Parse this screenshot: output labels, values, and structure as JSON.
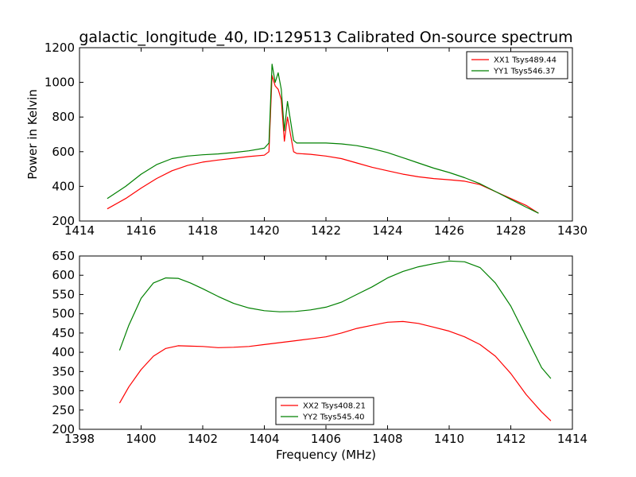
{
  "chart_data": [
    {
      "type": "line",
      "title": "galactic_longitude_40, ID:129513 Calibrated On-source spectrum",
      "xlabel": "",
      "ylabel": "Power in Kelvin",
      "xlim": [
        1414,
        1430
      ],
      "ylim": [
        200,
        1200
      ],
      "xticks": [
        "1414",
        "1416",
        "1418",
        "1420",
        "1422",
        "1424",
        "1426",
        "1428",
        "1430"
      ],
      "yticks": [
        "200",
        "400",
        "600",
        "800",
        "1000",
        "1200"
      ],
      "legend_position": "top-right",
      "grid": false,
      "series": [
        {
          "name": "XX1 Tsys489.44",
          "color": "#ff0000",
          "x": [
            1414.9,
            1415.5,
            1416.0,
            1416.5,
            1417.0,
            1417.5,
            1418.0,
            1418.5,
            1419.0,
            1419.5,
            1420.0,
            1420.15,
            1420.25,
            1420.35,
            1420.45,
            1420.55,
            1420.65,
            1420.75,
            1420.85,
            1420.95,
            1421.05,
            1421.5,
            1422.0,
            1422.5,
            1423.0,
            1423.5,
            1424.0,
            1424.5,
            1425.0,
            1425.5,
            1426.0,
            1426.5,
            1427.0,
            1427.5,
            1428.0,
            1428.5,
            1428.9
          ],
          "y": [
            270,
            330,
            390,
            445,
            490,
            520,
            540,
            552,
            562,
            572,
            580,
            600,
            1040,
            980,
            960,
            900,
            660,
            800,
            700,
            600,
            590,
            585,
            575,
            560,
            535,
            510,
            490,
            470,
            455,
            445,
            438,
            430,
            410,
            370,
            330,
            290,
            245
          ]
        },
        {
          "name": "YY1 Tsys546.37",
          "color": "#008000",
          "x": [
            1414.9,
            1415.5,
            1416.0,
            1416.5,
            1417.0,
            1417.5,
            1418.0,
            1418.5,
            1419.0,
            1419.5,
            1420.0,
            1420.15,
            1420.25,
            1420.35,
            1420.45,
            1420.55,
            1420.65,
            1420.75,
            1420.85,
            1420.95,
            1421.05,
            1421.5,
            1422.0,
            1422.5,
            1423.0,
            1423.5,
            1424.0,
            1424.5,
            1425.0,
            1425.5,
            1426.0,
            1426.5,
            1427.0,
            1427.5,
            1428.0,
            1428.5,
            1428.9
          ],
          "y": [
            330,
            400,
            470,
            525,
            560,
            575,
            582,
            587,
            595,
            605,
            620,
            650,
            1105,
            1000,
            1055,
            960,
            720,
            890,
            780,
            665,
            650,
            650,
            650,
            645,
            635,
            618,
            595,
            565,
            535,
            505,
            480,
            450,
            415,
            370,
            325,
            280,
            245
          ]
        }
      ]
    },
    {
      "type": "line",
      "title": "",
      "xlabel": "Frequency (MHz)",
      "ylabel": "",
      "xlim": [
        1398,
        1414
      ],
      "ylim": [
        200,
        650
      ],
      "xticks": [
        "1398",
        "1400",
        "1402",
        "1404",
        "1406",
        "1408",
        "1410",
        "1412",
        "1414"
      ],
      "yticks": [
        "200",
        "250",
        "300",
        "350",
        "400",
        "450",
        "500",
        "550",
        "600",
        "650"
      ],
      "legend_position": "bottom-center",
      "grid": false,
      "series": [
        {
          "name": "XX2 Tsys408.21",
          "color": "#ff0000",
          "x": [
            1399.3,
            1399.6,
            1400.0,
            1400.4,
            1400.8,
            1401.2,
            1401.6,
            1402.0,
            1402.5,
            1403.0,
            1403.5,
            1404.0,
            1404.5,
            1405.0,
            1405.5,
            1406.0,
            1406.5,
            1407.0,
            1407.5,
            1408.0,
            1408.5,
            1409.0,
            1409.5,
            1410.0,
            1410.5,
            1411.0,
            1411.5,
            1412.0,
            1412.5,
            1413.0,
            1413.3
          ],
          "y": [
            268,
            310,
            355,
            390,
            410,
            417,
            416,
            415,
            412,
            413,
            415,
            420,
            425,
            430,
            435,
            440,
            450,
            462,
            470,
            478,
            480,
            475,
            465,
            455,
            440,
            420,
            390,
            345,
            290,
            245,
            222
          ]
        },
        {
          "name": "YY2 Tsys545.40",
          "color": "#008000",
          "x": [
            1399.3,
            1399.6,
            1400.0,
            1400.4,
            1400.8,
            1401.2,
            1401.6,
            1402.0,
            1402.5,
            1403.0,
            1403.5,
            1404.0,
            1404.5,
            1405.0,
            1405.5,
            1406.0,
            1406.5,
            1407.0,
            1407.5,
            1408.0,
            1408.5,
            1409.0,
            1409.5,
            1410.0,
            1410.5,
            1411.0,
            1411.5,
            1412.0,
            1412.5,
            1413.0,
            1413.3
          ],
          "y": [
            405,
            470,
            540,
            580,
            593,
            592,
            580,
            565,
            545,
            527,
            515,
            508,
            505,
            506,
            510,
            517,
            530,
            550,
            570,
            593,
            610,
            622,
            630,
            637,
            635,
            620,
            580,
            520,
            440,
            360,
            332
          ]
        }
      ]
    }
  ]
}
